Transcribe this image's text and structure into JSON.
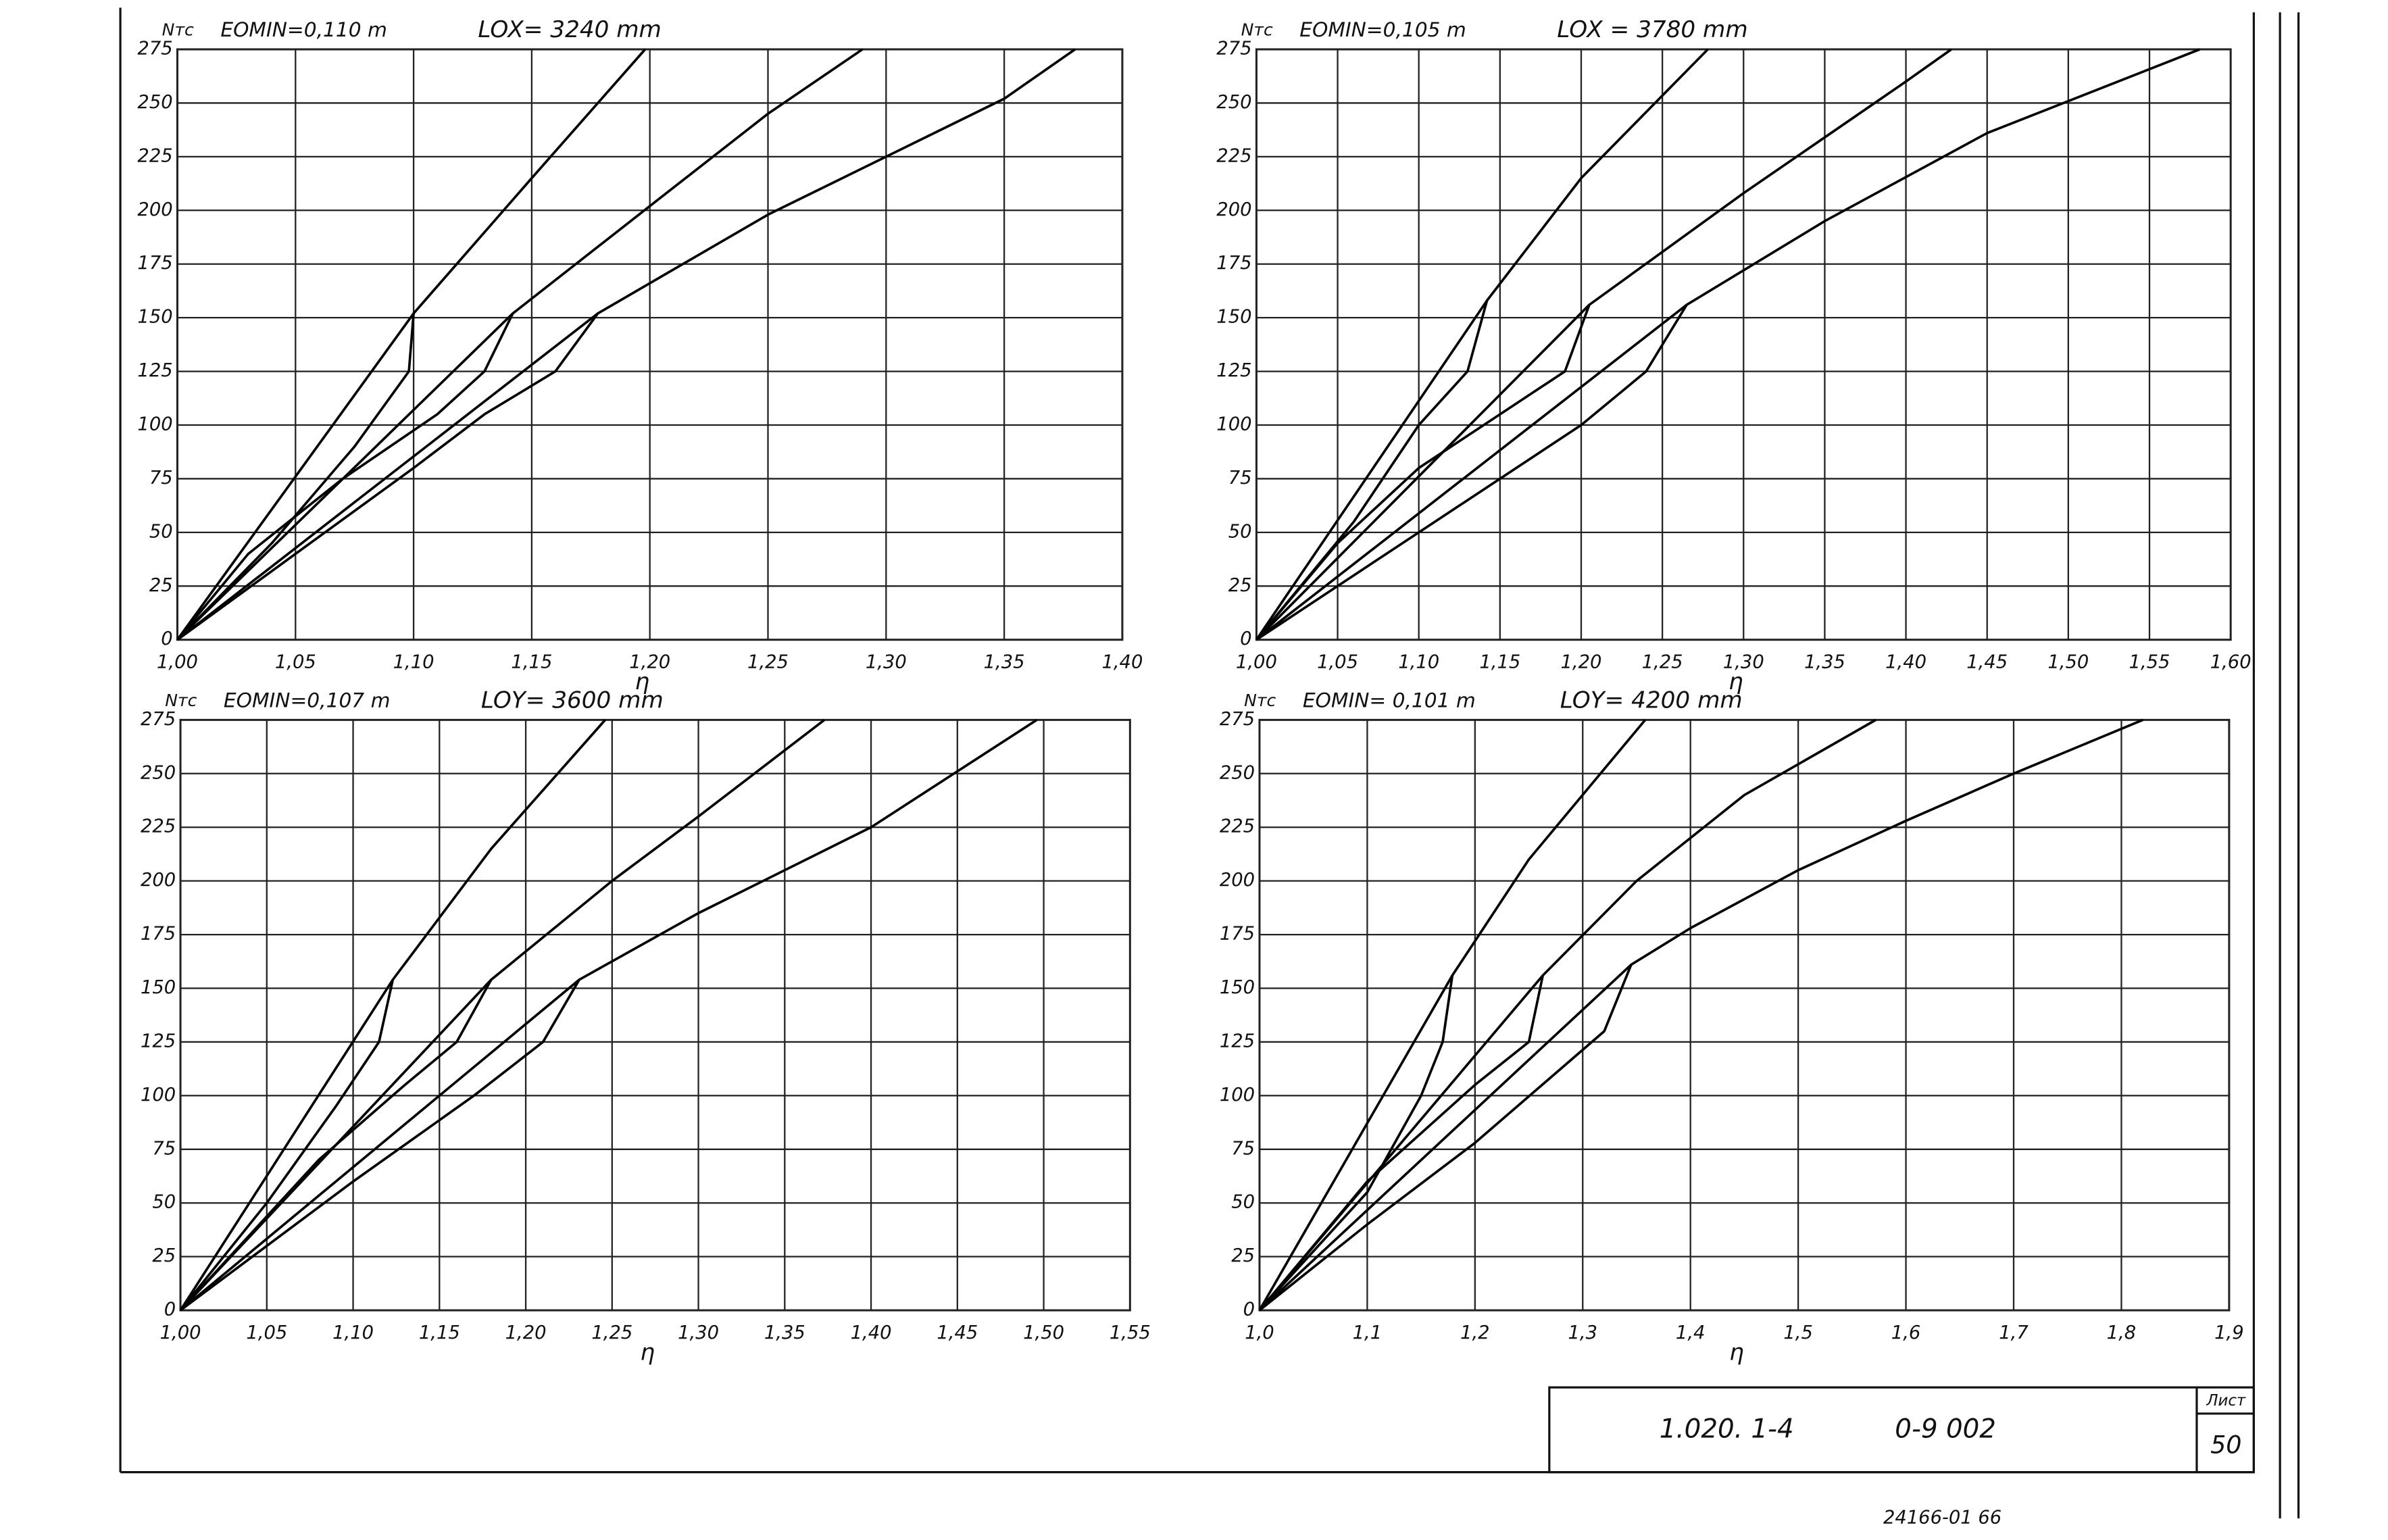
{
  "chart_data": [
    {
      "type": "line",
      "y_label": "Nтс",
      "emin": "EOMIN=0,110 m",
      "length": "LOX= 3240 mm",
      "x_label": "η",
      "xlim": [
        1.0,
        1.4
      ],
      "ylim": [
        0,
        275
      ],
      "grid": true,
      "xticks": [
        {
          "value": 1.0,
          "label": "1,00"
        },
        {
          "value": 1.05,
          "label": "1,05"
        },
        {
          "value": 1.1,
          "label": "1,10"
        },
        {
          "value": 1.15,
          "label": "1,15"
        },
        {
          "value": 1.2,
          "label": "1,20"
        },
        {
          "value": 1.25,
          "label": "1,25"
        },
        {
          "value": 1.3,
          "label": "1,30"
        },
        {
          "value": 1.35,
          "label": "1,35"
        },
        {
          "value": 1.4,
          "label": "1,40"
        }
      ],
      "yticks": [
        0,
        25,
        50,
        75,
        100,
        125,
        150,
        175,
        200,
        225,
        250,
        275
      ],
      "series": [
        {
          "color": "#000000",
          "x": [
            1.0,
            1.1,
            1.15,
            1.198
          ],
          "values": [
            0,
            152,
            215,
            275
          ]
        },
        {
          "color": "#000000",
          "x": [
            1.1,
            1.098,
            1.075,
            1.04,
            1.0
          ],
          "values": [
            152,
            125,
            90,
            45,
            0
          ]
        },
        {
          "color": "#000000",
          "x": [
            1.0,
            1.142,
            1.2,
            1.25,
            1.29
          ],
          "values": [
            0,
            152,
            202,
            245,
            275
          ]
        },
        {
          "color": "#000000",
          "x": [
            1.142,
            1.13,
            1.11,
            1.07,
            1.03,
            1.0
          ],
          "values": [
            152,
            125,
            105,
            75,
            40,
            0
          ]
        },
        {
          "color": "#000000",
          "x": [
            1.0,
            1.178,
            1.25,
            1.3,
            1.35,
            1.38
          ],
          "values": [
            0,
            152,
            198,
            225,
            252,
            275
          ]
        },
        {
          "color": "#000000",
          "x": [
            1.178,
            1.16,
            1.13,
            1.1,
            1.05,
            1.0
          ],
          "values": [
            152,
            125,
            105,
            80,
            40,
            0
          ]
        }
      ]
    },
    {
      "type": "line",
      "y_label": "Nтс",
      "emin": "EOMIN=0,105 m",
      "length": "LOX = 3780 mm",
      "x_label": "η",
      "xlim": [
        1.0,
        1.6
      ],
      "ylim": [
        0,
        275
      ],
      "grid": true,
      "xticks": [
        {
          "value": 1.0,
          "label": "1,00"
        },
        {
          "value": 1.05,
          "label": "1,05"
        },
        {
          "value": 1.1,
          "label": "1,10"
        },
        {
          "value": 1.15,
          "label": "1,15"
        },
        {
          "value": 1.2,
          "label": "1,20"
        },
        {
          "value": 1.25,
          "label": "1,25"
        },
        {
          "value": 1.3,
          "label": "1,30"
        },
        {
          "value": 1.35,
          "label": "1,35"
        },
        {
          "value": 1.4,
          "label": "1,40"
        },
        {
          "value": 1.45,
          "label": "1,45"
        },
        {
          "value": 1.5,
          "label": "1,50"
        },
        {
          "value": 1.55,
          "label": "1,55"
        },
        {
          "value": 1.6,
          "label": "1,60"
        }
      ],
      "yticks": [
        0,
        25,
        50,
        75,
        100,
        125,
        150,
        175,
        200,
        225,
        250,
        275
      ],
      "series": [
        {
          "color": "#000000",
          "x": [
            1.0,
            1.142,
            1.2,
            1.278
          ],
          "values": [
            0,
            158,
            215,
            275
          ]
        },
        {
          "color": "#000000",
          "x": [
            1.142,
            1.13,
            1.1,
            1.06,
            1.0
          ],
          "values": [
            158,
            125,
            100,
            55,
            0
          ]
        },
        {
          "color": "#000000",
          "x": [
            1.0,
            1.205,
            1.3,
            1.4,
            1.428
          ],
          "values": [
            0,
            156,
            208,
            260,
            275
          ]
        },
        {
          "color": "#000000",
          "x": [
            1.205,
            1.19,
            1.15,
            1.1,
            1.05,
            1.0
          ],
          "values": [
            156,
            125,
            105,
            80,
            45,
            0
          ]
        },
        {
          "color": "#000000",
          "x": [
            1.0,
            1.265,
            1.35,
            1.45,
            1.581
          ],
          "values": [
            0,
            156,
            195,
            236,
            275
          ]
        },
        {
          "color": "#000000",
          "x": [
            1.265,
            1.24,
            1.2,
            1.1,
            1.0
          ],
          "values": [
            156,
            125,
            100,
            50,
            0
          ]
        }
      ]
    },
    {
      "type": "line",
      "y_label": "Nтс",
      "emin": "EOMIN=0,107 m",
      "length": "LOY= 3600 mm",
      "x_label": "η",
      "xlim": [
        1.0,
        1.55
      ],
      "ylim": [
        0,
        275
      ],
      "grid": true,
      "xticks": [
        {
          "value": 1.0,
          "label": "1,00"
        },
        {
          "value": 1.05,
          "label": "1,05"
        },
        {
          "value": 1.1,
          "label": "1,10"
        },
        {
          "value": 1.15,
          "label": "1,15"
        },
        {
          "value": 1.2,
          "label": "1,20"
        },
        {
          "value": 1.25,
          "label": "1,25"
        },
        {
          "value": 1.3,
          "label": "1,30"
        },
        {
          "value": 1.35,
          "label": "1,35"
        },
        {
          "value": 1.4,
          "label": "1,40"
        },
        {
          "value": 1.45,
          "label": "1,45"
        },
        {
          "value": 1.5,
          "label": "1,50"
        },
        {
          "value": 1.55,
          "label": "1,55"
        }
      ],
      "yticks": [
        0,
        25,
        50,
        75,
        100,
        125,
        150,
        175,
        200,
        225,
        250,
        275
      ],
      "series": [
        {
          "color": "#000000",
          "x": [
            1.0,
            1.123,
            1.18,
            1.246
          ],
          "values": [
            0,
            154,
            215,
            275
          ]
        },
        {
          "color": "#000000",
          "x": [
            1.123,
            1.115,
            1.09,
            1.05,
            1.0
          ],
          "values": [
            154,
            125,
            95,
            50,
            0
          ]
        },
        {
          "color": "#000000",
          "x": [
            1.0,
            1.18,
            1.25,
            1.3,
            1.373
          ],
          "values": [
            0,
            154,
            200,
            230,
            275
          ]
        },
        {
          "color": "#000000",
          "x": [
            1.18,
            1.16,
            1.13,
            1.08,
            1.0
          ],
          "values": [
            154,
            125,
            105,
            70,
            0
          ]
        },
        {
          "color": "#000000",
          "x": [
            1.0,
            1.231,
            1.3,
            1.4,
            1.496
          ],
          "values": [
            0,
            154,
            185,
            225,
            275
          ]
        },
        {
          "color": "#000000",
          "x": [
            1.231,
            1.21,
            1.17,
            1.1,
            1.0
          ],
          "values": [
            154,
            125,
            100,
            60,
            0
          ]
        }
      ]
    },
    {
      "type": "line",
      "y_label": "Nтс",
      "emin": "EOMIN= 0,101 m",
      "length": "LOY= 4200 mm",
      "x_label": "η",
      "xlim": [
        1.0,
        1.9
      ],
      "ylim": [
        0,
        275
      ],
      "grid": true,
      "xticks": [
        {
          "value": 1.0,
          "label": "1,0"
        },
        {
          "value": 1.1,
          "label": "1,1"
        },
        {
          "value": 1.2,
          "label": "1,2"
        },
        {
          "value": 1.3,
          "label": "1,3"
        },
        {
          "value": 1.4,
          "label": "1,4"
        },
        {
          "value": 1.5,
          "label": "1,5"
        },
        {
          "value": 1.6,
          "label": "1,6"
        },
        {
          "value": 1.7,
          "label": "1,7"
        },
        {
          "value": 1.8,
          "label": "1,8"
        },
        {
          "value": 1.9,
          "label": "1,9"
        }
      ],
      "yticks": [
        0,
        25,
        50,
        75,
        100,
        125,
        150,
        175,
        200,
        225,
        250,
        275
      ],
      "series": [
        {
          "color": "#000000",
          "x": [
            1.0,
            1.179,
            1.25,
            1.358
          ],
          "values": [
            0,
            156,
            210,
            275
          ]
        },
        {
          "color": "#000000",
          "x": [
            1.179,
            1.17,
            1.15,
            1.1,
            1.0
          ],
          "values": [
            156,
            125,
            100,
            55,
            0
          ]
        },
        {
          "color": "#000000",
          "x": [
            1.0,
            1.263,
            1.35,
            1.45,
            1.572
          ],
          "values": [
            0,
            156,
            200,
            240,
            275
          ]
        },
        {
          "color": "#000000",
          "x": [
            1.263,
            1.25,
            1.2,
            1.1,
            1.0
          ],
          "values": [
            156,
            125,
            105,
            60,
            0
          ]
        },
        {
          "color": "#000000",
          "x": [
            1.0,
            1.345,
            1.4,
            1.5,
            1.6,
            1.7,
            1.82
          ],
          "values": [
            0,
            161,
            178,
            205,
            228,
            250,
            275
          ]
        },
        {
          "color": "#000000",
          "x": [
            1.345,
            1.32,
            1.2,
            1.1,
            1.0
          ],
          "values": [
            161,
            130,
            78,
            40,
            0
          ]
        }
      ]
    }
  ],
  "title_block": {
    "code": "1.020. 1-4",
    "number": "0-9 002",
    "sheet_label": "Лист",
    "sheet": "50"
  },
  "footer": "24166-01  66"
}
